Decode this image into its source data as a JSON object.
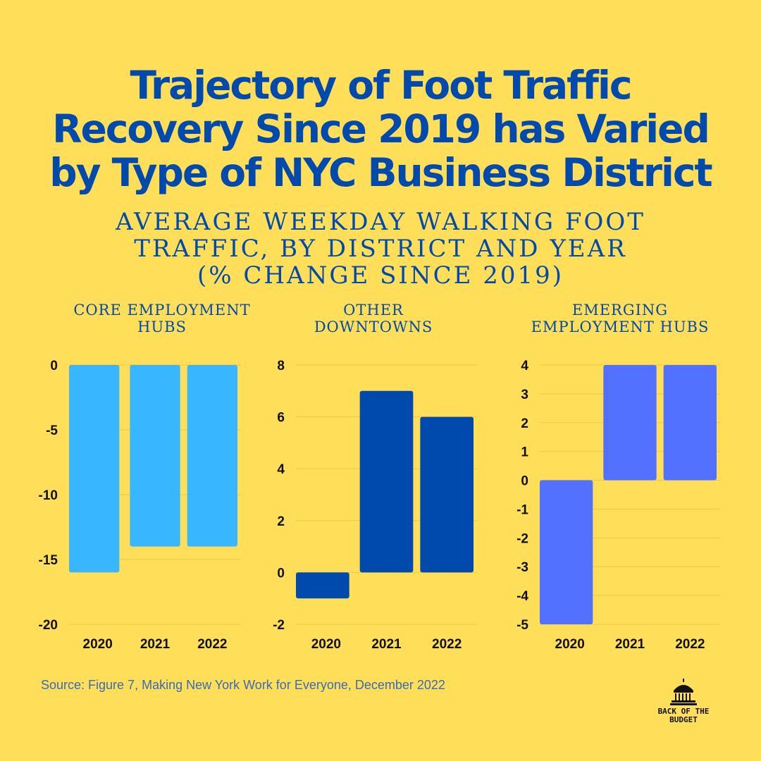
{
  "title": {
    "line1": "Trajectory of Foot Traffic",
    "line2": "Recovery Since 2019 has Varied",
    "line3": "by Type of NYC Business District"
  },
  "subtitle": {
    "line1": "AVERAGE WEEKDAY WALKING FOOT",
    "line2": "TRAFFIC, BY DISTRICT AND YEAR",
    "line3": "(% CHANGE SINCE 2019)"
  },
  "source": "Source: Figure 7, Making New York Work for Everyone, December 2022",
  "logo": {
    "line1": "BACK OF THE",
    "line2": "BUDGET",
    "icon": "capitol-dome-icon"
  },
  "colors": {
    "background": "#FFDE59",
    "title": "#004AAD"
  },
  "chart_data": [
    {
      "type": "bar",
      "title_lines": [
        "CORE EMPLOYMENT",
        "HUBS"
      ],
      "categories": [
        "2020",
        "2021",
        "2022"
      ],
      "values": [
        -16,
        -14,
        -14
      ],
      "ylim": [
        -20,
        0
      ],
      "yticks": [
        0,
        -5,
        -10,
        -15,
        -20
      ],
      "grid": true,
      "color": "#38B6FF"
    },
    {
      "type": "bar",
      "title_lines": [
        "OTHER",
        "DOWNTOWNS"
      ],
      "categories": [
        "2020",
        "2021",
        "2022"
      ],
      "values": [
        -1,
        7,
        6
      ],
      "ylim": [
        -2,
        8
      ],
      "yticks": [
        8,
        6,
        4,
        2,
        0,
        -2
      ],
      "grid": true,
      "color": "#004AAD"
    },
    {
      "type": "bar",
      "title_lines": [
        "EMERGING",
        "EMPLOYMENT HUBS"
      ],
      "categories": [
        "2020",
        "2021",
        "2022"
      ],
      "values": [
        -5,
        4,
        4
      ],
      "ylim": [
        -5,
        4
      ],
      "yticks": [
        4,
        3,
        2,
        1,
        0,
        -1,
        -2,
        -3,
        -4,
        -5
      ],
      "grid": true,
      "color": "#5271FF"
    }
  ]
}
